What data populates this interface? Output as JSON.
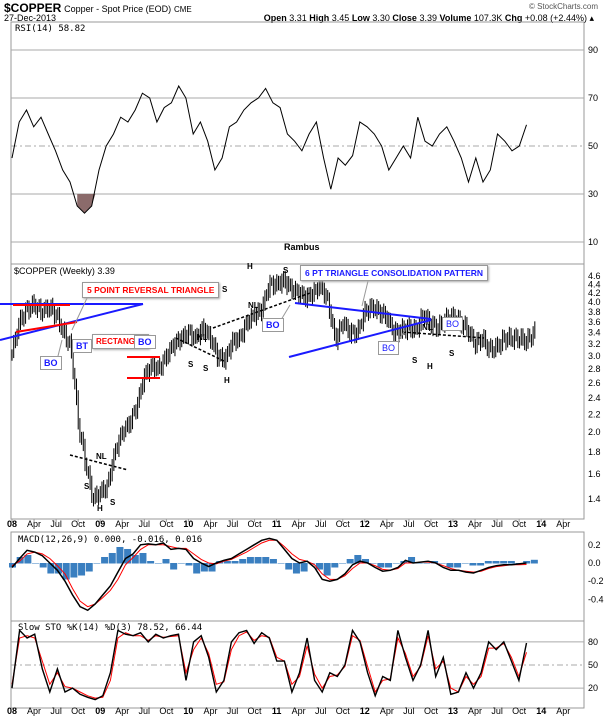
{
  "header": {
    "symbol": "$COPPER",
    "name": "Copper - Spot Price (EOD)",
    "exchange": "CME",
    "date": "27-Dec-2013",
    "watermark": "© StockCharts.com",
    "open_label": "Open",
    "open": "3.31",
    "high_label": "High",
    "high": "3.45",
    "low_label": "Low",
    "low": "3.30",
    "close_label": "Close",
    "close": "3.39",
    "volume_label": "Volume",
    "volume": "107.3K",
    "chg_label": "Chg",
    "chg": "+0.08 (+2.44%)"
  },
  "annotations": {
    "author": "Rambus",
    "reversal": "5 POINT REVERSAL TRIANGLE",
    "rectangle": "RECTANGLE",
    "triangle": "6 PT TRIANGLE CONSOLIDATION PATTERN",
    "bo": "BO",
    "bt": "BT",
    "s": "S",
    "h": "H",
    "nl": "NL"
  },
  "colors": {
    "price": "#000000",
    "signal": "#ff0000",
    "hist": "#3a7fc0",
    "rsi_fill": "#8b6b6b",
    "blue": "#1a1aff",
    "red": "#ff0000"
  },
  "chart_data": [
    {
      "type": "line",
      "title": "RSI(14) 58.82",
      "yticks": [
        90,
        70,
        50,
        30,
        10
      ],
      "ylim": [
        0,
        100
      ],
      "values": [
        45,
        60,
        65,
        58,
        62,
        55,
        48,
        40,
        35,
        25,
        22,
        25,
        40,
        50,
        55,
        62,
        60,
        65,
        72,
        70,
        60,
        66,
        68,
        75,
        70,
        55,
        60,
        52,
        40,
        45,
        58,
        60,
        65,
        68,
        70,
        74,
        68,
        66,
        55,
        52,
        48,
        55,
        60,
        45,
        32,
        45,
        42,
        46,
        60,
        58,
        55,
        50,
        40,
        45,
        50,
        45,
        62,
        52,
        50,
        55,
        58,
        52,
        45,
        35,
        45,
        35,
        40,
        55,
        52,
        48,
        50,
        58.82
      ]
    },
    {
      "type": "bar",
      "title": "$COPPER (Weekly) 3.39",
      "yticks": [
        4.6,
        4.4,
        4.2,
        4.0,
        3.8,
        3.6,
        3.4,
        3.2,
        3.0,
        2.8,
        2.6,
        2.4,
        2.2,
        2.0,
        1.8,
        1.6,
        1.4
      ],
      "ylim": [
        1.3,
        4.7
      ],
      "scale": "log",
      "x_start": "2008-01",
      "x_step": "month",
      "close": [
        3.05,
        3.6,
        3.85,
        3.95,
        3.8,
        3.9,
        3.75,
        3.4,
        3.15,
        2.1,
        1.7,
        1.4,
        1.45,
        1.5,
        1.8,
        2.0,
        2.1,
        2.3,
        2.7,
        2.85,
        2.8,
        3.0,
        3.2,
        3.3,
        3.4,
        3.3,
        3.5,
        3.3,
        3.0,
        2.95,
        3.25,
        3.3,
        3.6,
        3.75,
        3.85,
        4.4,
        4.4,
        4.5,
        4.3,
        4.2,
        4.1,
        4.2,
        4.4,
        4.0,
        3.25,
        3.6,
        3.4,
        3.4,
        3.8,
        3.9,
        3.8,
        3.7,
        3.4,
        3.45,
        3.5,
        3.45,
        3.75,
        3.55,
        3.5,
        3.65,
        3.7,
        3.6,
        3.45,
        3.2,
        3.3,
        3.1,
        3.15,
        3.3,
        3.3,
        3.3,
        3.25,
        3.39
      ]
    },
    {
      "type": "line",
      "title": "MACD(12,26,9) 0.000, -0.016, 0.016",
      "legend": {
        "macd": "0.000",
        "signal": "-0.016",
        "hist": "0.016"
      },
      "yticks": [
        0.2,
        0.0,
        -0.2,
        -0.4
      ],
      "ylim": [
        -0.55,
        0.3
      ],
      "macd": [
        -0.05,
        0.05,
        0.14,
        0.12,
        0.08,
        0.0,
        -0.08,
        -0.2,
        -0.35,
        -0.48,
        -0.52,
        -0.45,
        -0.35,
        -0.25,
        -0.1,
        0.05,
        0.1,
        0.2,
        0.21,
        0.2,
        0.22,
        0.15,
        0.16,
        0.15,
        0.05,
        0.0,
        -0.04,
        0.0,
        0.03,
        0.05,
        0.1,
        0.15,
        0.2,
        0.25,
        0.27,
        0.25,
        0.15,
        0.05,
        0.0,
        0.02,
        -0.05,
        -0.18,
        -0.2,
        -0.18,
        -0.12,
        -0.02,
        0.02,
        0.0,
        -0.05,
        -0.09,
        -0.08,
        -0.05,
        0.03,
        0.0,
        0.01,
        0.02,
        0.0,
        -0.05,
        -0.08,
        -0.08,
        -0.1,
        -0.11,
        -0.08,
        -0.05,
        -0.03,
        -0.02,
        -0.02,
        -0.01,
        0.0
      ],
      "signal": [
        -0.03,
        0.02,
        0.1,
        0.12,
        0.1,
        0.05,
        -0.03,
        -0.12,
        -0.28,
        -0.42,
        -0.48,
        -0.45,
        -0.38,
        -0.3,
        -0.18,
        -0.02,
        0.06,
        0.15,
        0.2,
        0.2,
        0.2,
        0.18,
        0.16,
        0.16,
        0.1,
        0.04,
        0.0,
        -0.01,
        0.02,
        0.04,
        0.08,
        0.12,
        0.17,
        0.22,
        0.25,
        0.25,
        0.18,
        0.1,
        0.04,
        0.02,
        -0.02,
        -0.12,
        -0.18,
        -0.18,
        -0.14,
        -0.06,
        0.0,
        0.0,
        -0.03,
        -0.07,
        -0.08,
        -0.06,
        0.0,
        0.0,
        0.01,
        0.01,
        0.0,
        -0.03,
        -0.06,
        -0.08,
        -0.09,
        -0.1,
        -0.09,
        -0.06,
        -0.04,
        -0.03,
        -0.02,
        -0.02,
        -0.016
      ]
    },
    {
      "type": "line",
      "title": "Slow STO %K(14) %D(3) 78.52, 66.44",
      "legend": {
        "k": "78.52",
        "d": "66.44"
      },
      "yticks": [
        80,
        50,
        20
      ],
      "ylim": [
        0,
        100
      ],
      "k": [
        20,
        95,
        85,
        90,
        45,
        15,
        45,
        15,
        20,
        12,
        8,
        5,
        10,
        40,
        95,
        90,
        88,
        92,
        80,
        90,
        85,
        88,
        90,
        30,
        80,
        88,
        60,
        15,
        30,
        80,
        92,
        95,
        78,
        92,
        85,
        55,
        55,
        15,
        40,
        85,
        30,
        15,
        40,
        35,
        50,
        95,
        80,
        40,
        10,
        35,
        30,
        95,
        60,
        30,
        50,
        95,
        35,
        60,
        12,
        15,
        40,
        20,
        40,
        80,
        70,
        80,
        55,
        30,
        78.52
      ],
      "d": [
        25,
        85,
        88,
        85,
        55,
        25,
        40,
        22,
        20,
        15,
        10,
        7,
        8,
        30,
        85,
        92,
        88,
        88,
        82,
        88,
        86,
        87,
        88,
        40,
        70,
        85,
        65,
        25,
        28,
        70,
        88,
        93,
        82,
        88,
        86,
        60,
        55,
        25,
        35,
        75,
        38,
        20,
        35,
        37,
        48,
        88,
        82,
        48,
        15,
        30,
        32,
        85,
        65,
        35,
        48,
        88,
        45,
        55,
        20,
        15,
        35,
        25,
        35,
        72,
        72,
        78,
        60,
        35,
        66.44
      ]
    },
    {
      "type": "axis",
      "x_tick_labels": [
        "08",
        "Apr",
        "Jul",
        "Oct",
        "09",
        "Apr",
        "Jul",
        "Oct",
        "10",
        "Apr",
        "Jul",
        "Oct",
        "11",
        "Apr",
        "Jul",
        "Oct",
        "12",
        "Apr",
        "Jul",
        "Oct",
        "13",
        "Apr",
        "Jul",
        "Oct",
        "14",
        "Apr"
      ]
    }
  ]
}
